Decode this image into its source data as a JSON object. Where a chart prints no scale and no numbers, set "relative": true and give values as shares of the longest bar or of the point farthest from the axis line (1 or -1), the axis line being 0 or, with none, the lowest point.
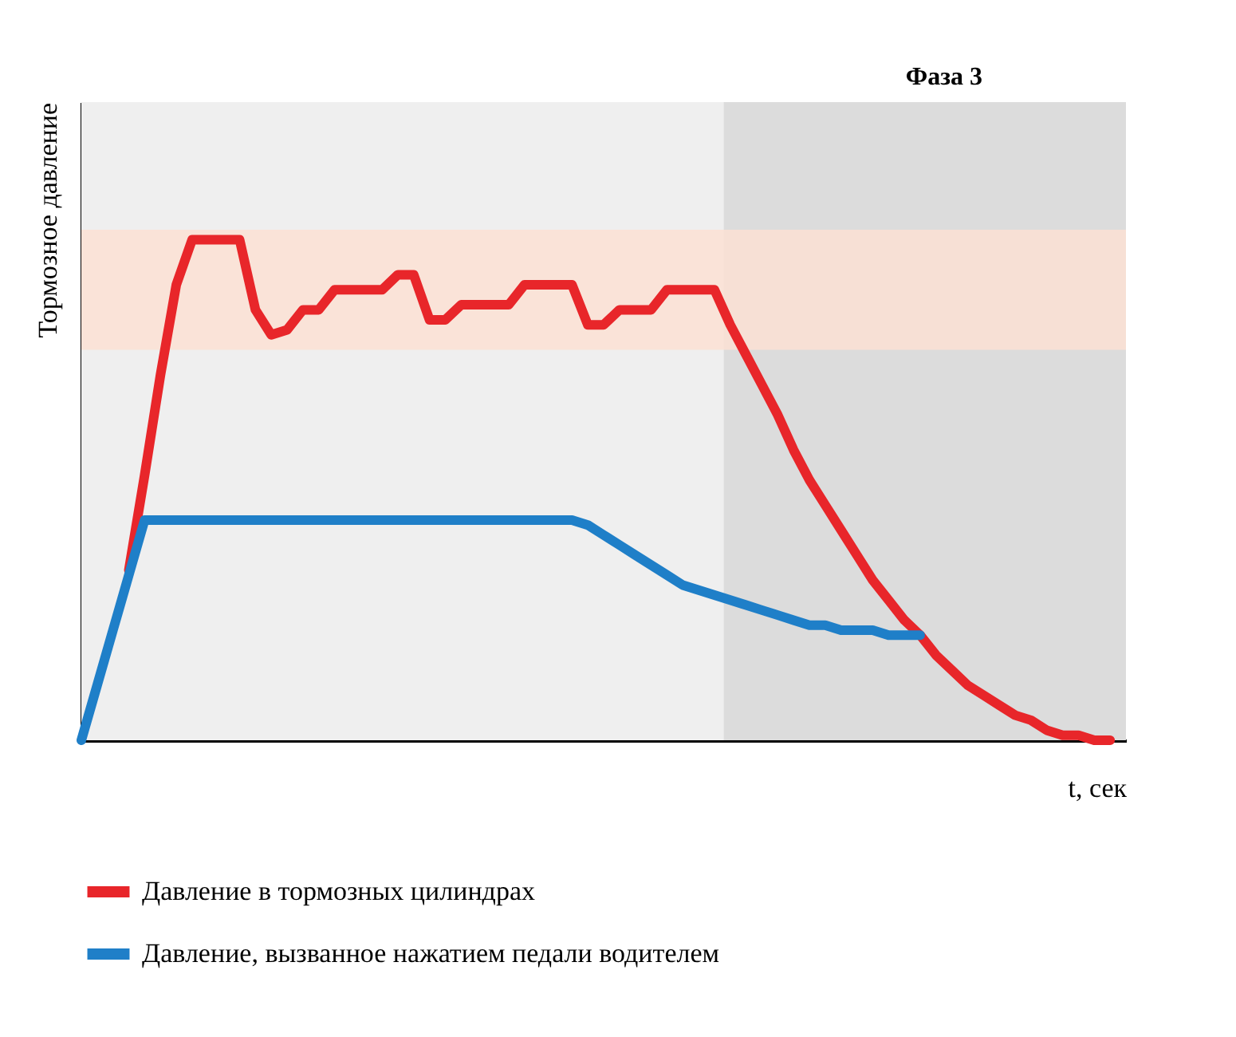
{
  "chart_data": {
    "type": "line",
    "relative": true,
    "ylabel": "Тормозное давление",
    "xlabel": "t, сек",
    "annotations": [
      "Фаза 3"
    ],
    "categories": [
      null,
      null,
      null,
      null,
      null,
      null,
      null,
      null,
      null,
      null,
      null,
      null,
      null,
      null,
      null,
      null,
      null,
      null,
      null,
      null,
      null,
      null,
      null,
      null,
      null,
      null,
      null,
      null,
      null,
      null,
      null,
      null,
      null,
      null,
      null,
      null,
      null,
      null,
      null,
      null,
      null,
      null,
      null,
      null,
      null,
      null,
      null,
      null,
      null,
      null,
      null,
      null,
      null,
      null,
      null,
      null,
      null,
      null,
      null,
      null,
      null,
      null,
      null,
      null,
      null,
      null
    ],
    "series": [
      {
        "name": "Давление в тормозных цилиндрах",
        "color": "#e8262a",
        "values": [
          null,
          null,
          null,
          0.34,
          0.53,
          0.73,
          0.91,
          1,
          1,
          1,
          1,
          0.86,
          0.81,
          0.82,
          0.86,
          0.86,
          0.9,
          0.9,
          0.9,
          0.9,
          0.93,
          0.93,
          0.84,
          0.84,
          0.87,
          0.87,
          0.87,
          0.87,
          0.91,
          0.91,
          0.91,
          0.91,
          0.83,
          0.83,
          0.86,
          0.86,
          0.86,
          0.9,
          0.9,
          0.9,
          0.9,
          0.83,
          0.77,
          0.71,
          0.65,
          0.58,
          0.52,
          0.47,
          0.42,
          0.37,
          0.32,
          0.28,
          0.24,
          0.21,
          0.17,
          0.14,
          0.11,
          0.09,
          0.07,
          0.05,
          0.04,
          0.02,
          0.01,
          0.01,
          0,
          0
        ]
      },
      {
        "name": "Давление, вызванное нажатием педали водителем",
        "color": "#1f7fc8",
        "values": [
          0,
          0.11,
          0.22,
          0.33,
          0.44,
          0.44,
          0.44,
          0.44,
          0.44,
          0.44,
          0.44,
          0.44,
          0.44,
          0.44,
          0.44,
          0.44,
          0.44,
          0.44,
          0.44,
          0.44,
          0.44,
          0.44,
          0.44,
          0.44,
          0.44,
          0.44,
          0.44,
          0.44,
          0.44,
          0.44,
          0.44,
          0.44,
          0.43,
          0.41,
          0.39,
          0.37,
          0.35,
          0.33,
          0.31,
          0.3,
          0.29,
          0.28,
          0.27,
          0.26,
          0.25,
          0.24,
          0.23,
          0.23,
          0.22,
          0.22,
          0.22,
          0.21,
          0.21,
          0.21,
          null,
          null,
          null,
          null,
          null,
          null,
          null,
          null,
          null,
          null,
          null,
          null
        ]
      }
    ],
    "bands": [
      {
        "axis": "y",
        "from": 0.78,
        "to": 1.02,
        "color": "#fbe1d4"
      }
    ],
    "legend": "bottom"
  }
}
